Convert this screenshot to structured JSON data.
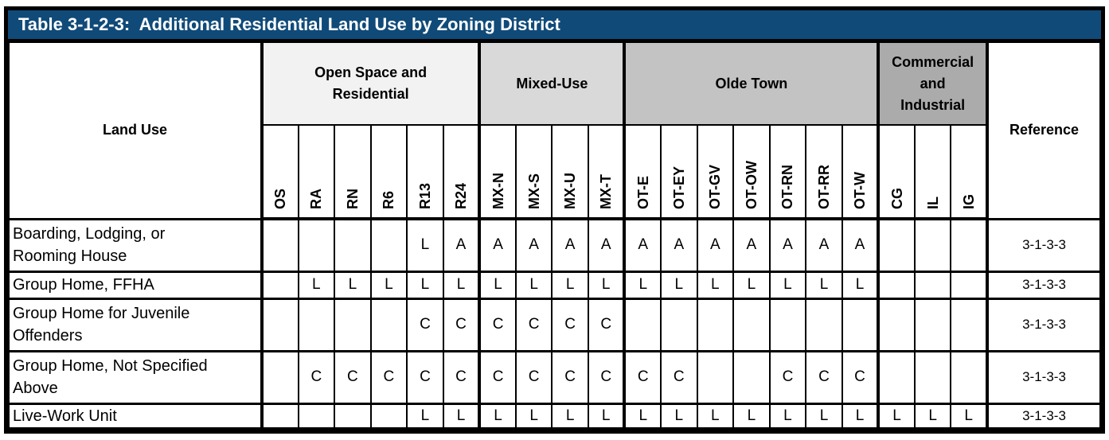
{
  "title": "Table 3-1-2-3:  Additional Residential Land Use by Zoning District",
  "colors": {
    "title_bar_background": "#104A78",
    "title_text": "#FFFFFF",
    "border": "#000000",
    "group_open_space_residential": "#F2F2F2",
    "group_mixed_use": "#D9D9D9",
    "group_olde_town": "#C3C3C3",
    "group_commercial_industrial": "#ABABAB"
  },
  "header": {
    "land_use_label": "Land Use",
    "reference_label": "Reference",
    "groups": [
      {
        "label": "Open Space and\nResidential",
        "columns": [
          "OS",
          "RA",
          "RN",
          "R6",
          "R13",
          "R24"
        ]
      },
      {
        "label": "Mixed-Use",
        "columns": [
          "MX-N",
          "MX-S",
          "MX-U",
          "MX-T"
        ]
      },
      {
        "label": "Olde Town",
        "columns": [
          "OT-E",
          "OT-EY",
          "OT-GV",
          "OT-OW",
          "OT-RN",
          "OT-RR",
          "OT-W"
        ]
      },
      {
        "label": "Commercial\nand\nIndustrial",
        "columns": [
          "CG",
          "IL",
          "IG"
        ]
      }
    ]
  },
  "rows": [
    {
      "land_use": "Boarding, Lodging, or\nRooming House",
      "values": [
        "",
        "",
        "",
        "",
        "L",
        "A",
        "A",
        "A",
        "A",
        "A",
        "A",
        "A",
        "A",
        "A",
        "A",
        "A",
        "A",
        "",
        "",
        ""
      ],
      "reference": "3-1-3-3"
    },
    {
      "land_use": "Group Home, FFHA",
      "values": [
        "",
        "L",
        "L",
        "L",
        "L",
        "L",
        "L",
        "L",
        "L",
        "L",
        "L",
        "L",
        "L",
        "L",
        "L",
        "L",
        "L",
        "",
        "",
        ""
      ],
      "reference": "3-1-3-3"
    },
    {
      "land_use": "Group Home for Juvenile\nOffenders",
      "values": [
        "",
        "",
        "",
        "",
        "C",
        "C",
        "C",
        "C",
        "C",
        "C",
        "",
        "",
        "",
        "",
        "",
        "",
        "",
        "",
        "",
        ""
      ],
      "reference": "3-1-3-3"
    },
    {
      "land_use": "Group Home, Not Specified\nAbove",
      "values": [
        "",
        "C",
        "C",
        "C",
        "C",
        "C",
        "C",
        "C",
        "C",
        "C",
        "C",
        "C",
        "",
        "",
        "C",
        "C",
        "C",
        "",
        "",
        ""
      ],
      "reference": "3-1-3-3"
    },
    {
      "land_use": "Live-Work Unit",
      "values": [
        "",
        "",
        "",
        "",
        "L",
        "L",
        "L",
        "L",
        "L",
        "L",
        "L",
        "L",
        "L",
        "L",
        "L",
        "L",
        "L",
        "L",
        "L",
        "L"
      ],
      "reference": "3-1-3-3"
    }
  ]
}
